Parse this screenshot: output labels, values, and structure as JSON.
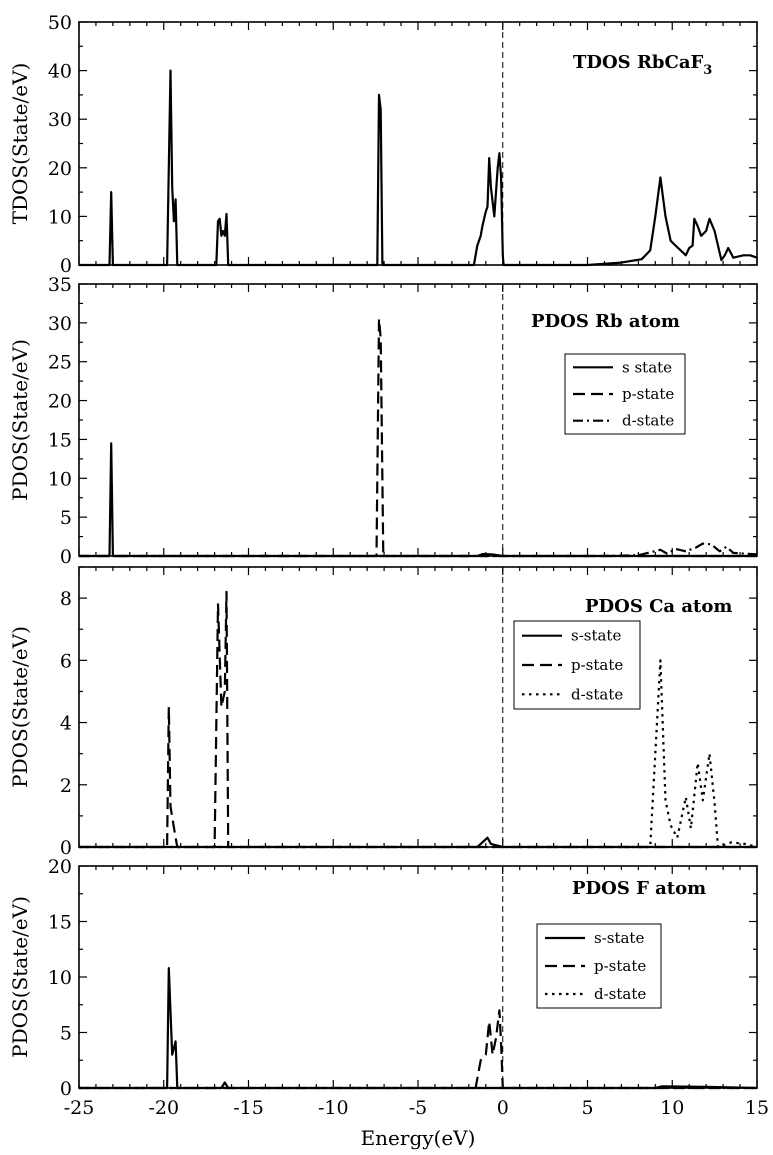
{
  "chart_data": [
    {
      "type": "line",
      "title": "TDOS RbCaF",
      "title_sub": "3",
      "ylabel": "TDOS(State/eV)",
      "xlabel": "",
      "xlim": [
        -25,
        15
      ],
      "ylim": [
        0,
        50
      ],
      "yticks": [
        0,
        10,
        20,
        30,
        40,
        50
      ],
      "xticks": [],
      "fermi_level": 0,
      "legend": null,
      "series": [
        {
          "style": "solid",
          "points": [
            [
              -25,
              0
            ],
            [
              -23.2,
              0
            ],
            [
              -23.1,
              15
            ],
            [
              -23.0,
              0
            ],
            [
              -19.8,
              0
            ],
            [
              -19.6,
              40
            ],
            [
              -19.5,
              16
            ],
            [
              -19.4,
              9
            ],
            [
              -19.3,
              13.5
            ],
            [
              -19.2,
              0
            ],
            [
              -16.9,
              0
            ],
            [
              -16.8,
              9
            ],
            [
              -16.7,
              9.5
            ],
            [
              -16.6,
              6
            ],
            [
              -16.5,
              7
            ],
            [
              -16.4,
              6
            ],
            [
              -16.3,
              10.5
            ],
            [
              -16.2,
              0
            ],
            [
              -7.4,
              0
            ],
            [
              -7.3,
              35
            ],
            [
              -7.2,
              32
            ],
            [
              -7.1,
              0
            ],
            [
              -1.7,
              0
            ],
            [
              -1.5,
              4
            ],
            [
              -1.3,
              6
            ],
            [
              -1.2,
              8
            ],
            [
              -1.0,
              11
            ],
            [
              -0.9,
              12
            ],
            [
              -0.8,
              22
            ],
            [
              -0.7,
              16
            ],
            [
              -0.5,
              10
            ],
            [
              -0.3,
              20
            ],
            [
              -0.2,
              23
            ],
            [
              -0.1,
              18
            ],
            [
              0,
              2
            ],
            [
              0.05,
              0
            ],
            [
              5,
              0
            ],
            [
              7,
              0.5
            ],
            [
              8.2,
              1.2
            ],
            [
              8.7,
              3
            ],
            [
              9.0,
              10
            ],
            [
              9.3,
              18
            ],
            [
              9.6,
              10
            ],
            [
              9.9,
              5
            ],
            [
              10.2,
              4
            ],
            [
              10.5,
              3
            ],
            [
              10.8,
              2
            ],
            [
              11.0,
              3.5
            ],
            [
              11.2,
              4
            ],
            [
              11.3,
              9.5
            ],
            [
              11.5,
              8
            ],
            [
              11.7,
              6
            ],
            [
              12.0,
              7
            ],
            [
              12.2,
              9.5
            ],
            [
              12.5,
              7
            ],
            [
              12.7,
              4
            ],
            [
              12.9,
              1
            ],
            [
              13.1,
              2
            ],
            [
              13.3,
              3.5
            ],
            [
              13.6,
              1.5
            ],
            [
              14.2,
              2
            ],
            [
              14.6,
              2
            ],
            [
              15,
              1.5
            ]
          ]
        }
      ]
    },
    {
      "type": "line",
      "title": "PDOS Rb atom",
      "ylabel": "PDOS(State/eV)",
      "xlabel": "",
      "xlim": [
        -25,
        15
      ],
      "ylim": [
        0,
        35
      ],
      "yticks": [
        0,
        5,
        10,
        15,
        20,
        25,
        30,
        35
      ],
      "xticks": [],
      "fermi_level": 0,
      "legend": [
        "s state",
        "p-state",
        "d-state"
      ],
      "series": [
        {
          "name": "s state",
          "style": "solid",
          "points": [
            [
              -25,
              0
            ],
            [
              -23.2,
              0
            ],
            [
              -23.1,
              14.5
            ],
            [
              -23.0,
              0
            ],
            [
              -1.5,
              0
            ],
            [
              -1.2,
              0.25
            ],
            [
              -0.6,
              0.2
            ],
            [
              0,
              0
            ],
            [
              15,
              0
            ]
          ]
        },
        {
          "name": "p-state",
          "style": "dashed",
          "points": [
            [
              -25,
              0
            ],
            [
              -7.45,
              0
            ],
            [
              -7.3,
              30.5
            ],
            [
              -7.2,
              28
            ],
            [
              -7.05,
              0
            ],
            [
              15,
              0
            ]
          ]
        },
        {
          "name": "d-state",
          "style": "dashdot",
          "points": [
            [
              -25,
              0
            ],
            [
              6,
              0
            ],
            [
              8,
              0.1
            ],
            [
              9.3,
              0.8
            ],
            [
              9.7,
              0.3
            ],
            [
              10.2,
              0.9
            ],
            [
              10.8,
              0.6
            ],
            [
              11.4,
              1.1
            ],
            [
              11.8,
              1.6
            ],
            [
              12.3,
              1.5
            ],
            [
              12.8,
              0.6
            ],
            [
              13.2,
              1.2
            ],
            [
              13.6,
              0.4
            ],
            [
              15,
              0.2
            ]
          ]
        }
      ]
    },
    {
      "type": "line",
      "title": "PDOS Ca atom",
      "ylabel": "PDOS(State/eV)",
      "xlabel": "",
      "xlim": [
        -25,
        15
      ],
      "ylim": [
        0,
        9
      ],
      "yticks": [
        0,
        2,
        4,
        6,
        8
      ],
      "xticks": [],
      "fermi_level": 0,
      "legend": [
        "s-state",
        "p-state",
        "d-state"
      ],
      "series": [
        {
          "name": "s-state",
          "style": "solid",
          "points": [
            [
              -25,
              0
            ],
            [
              -1.5,
              0
            ],
            [
              -1.3,
              0.1
            ],
            [
              -0.9,
              0.3
            ],
            [
              -0.7,
              0.1
            ],
            [
              0,
              0
            ],
            [
              15,
              0
            ]
          ]
        },
        {
          "name": "p-state",
          "style": "dashed",
          "points": [
            [
              -25,
              0
            ],
            [
              -19.8,
              0
            ],
            [
              -19.7,
              4.5
            ],
            [
              -19.6,
              1.3
            ],
            [
              -19.3,
              0.3
            ],
            [
              -19.2,
              0
            ],
            [
              -17.0,
              0
            ],
            [
              -16.8,
              7.8
            ],
            [
              -16.6,
              4.5
            ],
            [
              -16.4,
              5
            ],
            [
              -16.3,
              8.2
            ],
            [
              -16.2,
              0
            ],
            [
              15,
              0
            ]
          ]
        },
        {
          "name": "d-state",
          "style": "dotted",
          "points": [
            [
              -25,
              0
            ],
            [
              8.7,
              0
            ],
            [
              9.0,
              3
            ],
            [
              9.3,
              6
            ],
            [
              9.6,
              1.5
            ],
            [
              9.9,
              0.7
            ],
            [
              10.3,
              0.3
            ],
            [
              10.8,
              1.6
            ],
            [
              11.1,
              0.6
            ],
            [
              11.5,
              2.7
            ],
            [
              11.8,
              1.5
            ],
            [
              12.2,
              3
            ],
            [
              12.5,
              1.4
            ],
            [
              12.7,
              0
            ],
            [
              13.5,
              0.15
            ],
            [
              14.3,
              0.1
            ],
            [
              15,
              0
            ]
          ]
        }
      ]
    },
    {
      "type": "line",
      "title": "PDOS F atom",
      "ylabel": "PDOS(State/eV)",
      "xlabel": "Energy(eV)",
      "xlim": [
        -25,
        15
      ],
      "ylim": [
        0,
        20
      ],
      "yticks": [
        0,
        5,
        10,
        15,
        20
      ],
      "xticks": [
        -25,
        -20,
        -15,
        -10,
        -5,
        0,
        5,
        10,
        15
      ],
      "fermi_level": 0,
      "legend": [
        "s-state",
        "p-state",
        "d-state"
      ],
      "series": [
        {
          "name": "s-state",
          "style": "solid",
          "points": [
            [
              -25,
              0
            ],
            [
              -19.8,
              0
            ],
            [
              -19.7,
              10.8
            ],
            [
              -19.5,
              3
            ],
            [
              -19.3,
              4.2
            ],
            [
              -19.2,
              0
            ],
            [
              -16.6,
              0
            ],
            [
              -16.4,
              0.5
            ],
            [
              -16.2,
              0
            ],
            [
              9,
              0
            ],
            [
              9.4,
              0.15
            ],
            [
              12,
              0.1
            ],
            [
              15,
              0
            ]
          ]
        },
        {
          "name": "p-state",
          "style": "dashed",
          "points": [
            [
              -25,
              0
            ],
            [
              -1.6,
              0
            ],
            [
              -1.3,
              2.5
            ],
            [
              -1.0,
              3
            ],
            [
              -0.8,
              6
            ],
            [
              -0.6,
              3
            ],
            [
              -0.4,
              4.5
            ],
            [
              -0.2,
              7
            ],
            [
              -0.1,
              4
            ],
            [
              0,
              0
            ],
            [
              15,
              0
            ]
          ]
        },
        {
          "name": "d-state",
          "style": "dotted",
          "points": [
            [
              -25,
              0
            ],
            [
              15,
              0
            ]
          ]
        }
      ]
    }
  ]
}
